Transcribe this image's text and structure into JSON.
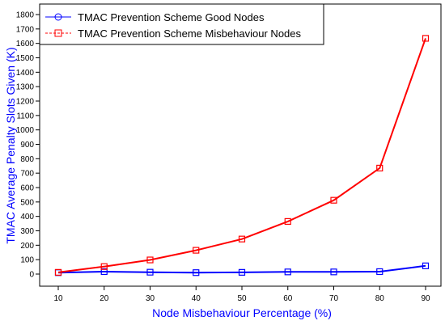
{
  "chart_data": {
    "type": "line",
    "title": "",
    "xlabel": "Node Misbehaviour Percentage (%)",
    "ylabel": "TMAC Average Penalty Slots Given (K)",
    "x": [
      10,
      20,
      30,
      40,
      50,
      60,
      70,
      80,
      90
    ],
    "xlim": [
      10,
      90
    ],
    "ylim": [
      0,
      1800
    ],
    "xticks": [
      "10",
      "20",
      "30",
      "40",
      "50",
      "60",
      "70",
      "80",
      "90"
    ],
    "yticks": [
      "0",
      "100",
      "200",
      "300",
      "400",
      "500",
      "600",
      "700",
      "800",
      "900",
      "1000",
      "1100",
      "1200",
      "1300",
      "1400",
      "1500",
      "1600",
      "1700",
      "1800"
    ],
    "grid": false,
    "legend_position": "top-left",
    "series": [
      {
        "name": "TMAC Prevention Scheme Good Nodes",
        "color": "#0000ff",
        "marker": "square",
        "values": [
          10,
          17,
          13,
          10,
          12,
          15,
          15,
          17,
          57
        ]
      },
      {
        "name": "TMAC Prevention Scheme Misbehaviour Nodes",
        "color": "#ff0000",
        "marker": "square",
        "values": [
          12,
          52,
          98,
          165,
          243,
          365,
          512,
          735,
          1635
        ]
      }
    ]
  }
}
